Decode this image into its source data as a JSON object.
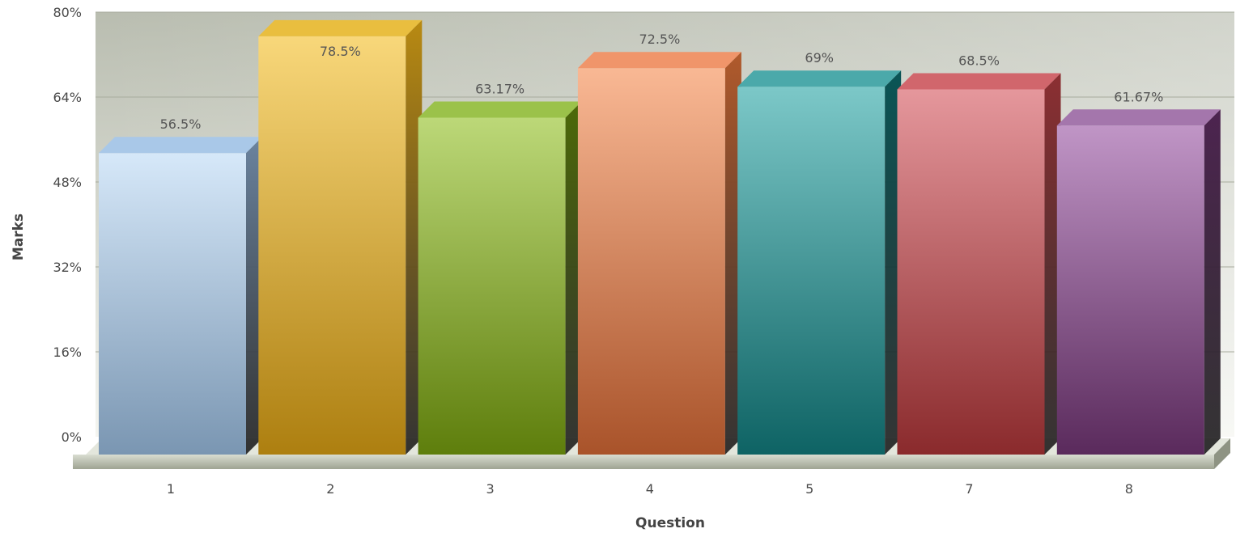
{
  "chart_data": {
    "type": "bar",
    "title": "",
    "xlabel": "Question",
    "ylabel": "Marks",
    "categories": [
      "1",
      "2",
      "3",
      "4",
      "5",
      "7",
      "8"
    ],
    "series": [
      {
        "values": [
          56.5,
          78.5,
          63.17,
          72.5,
          69,
          68.5,
          61.67
        ]
      }
    ],
    "value_labels": [
      "56.5%",
      "78.5%",
      "63.17%",
      "72.5%",
      "69%",
      "68.5%",
      "61.67%"
    ],
    "ylim": [
      0,
      80
    ],
    "y_ticks": [
      0,
      16,
      32,
      48,
      64,
      80
    ],
    "y_tick_labels": [
      "0%",
      "16%",
      "32%",
      "48%",
      "64%",
      "80%"
    ],
    "grid": true,
    "style": "3d-columns",
    "bar_colors": [
      {
        "light": "#d6e8f9",
        "dark": "#7a96b2",
        "side": "#6b84a0",
        "top": "#a9c8e8"
      },
      {
        "light": "#f8d77a",
        "dark": "#ad7f10",
        "side": "#b98a12",
        "top": "#e9be3f"
      },
      {
        "light": "#bcd878",
        "dark": "#5e7e0c",
        "side": "#4d6a08",
        "top": "#9bc24a"
      },
      {
        "light": "#f9b894",
        "dark": "#a9532a",
        "side": "#b15a2c",
        "top": "#f0956a"
      },
      {
        "light": "#7cc8c8",
        "dark": "#0e6364",
        "side": "#0a5556",
        "top": "#4ba9aa"
      },
      {
        "light": "#e5979c",
        "dark": "#8a2a2c",
        "side": "#8c2f32",
        "top": "#d1666c"
      },
      {
        "light": "#c095c6",
        "dark": "#5a2a5c",
        "side": "#4d2450",
        "top": "#a476ac"
      }
    ],
    "plot_background": "#c8ccc0"
  }
}
